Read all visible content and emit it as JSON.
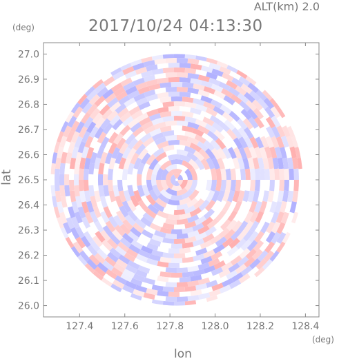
{
  "header": {
    "altitude_label": "ALT(km) 2.0",
    "timestamp": "2017/10/24 04:13:30"
  },
  "axes": {
    "y_unit": "(deg)",
    "x_unit": "(deg)",
    "y_name": "lat",
    "x_name": "lon"
  },
  "chart_data": {
    "type": "heatmap",
    "title": "2017/10/24 04:13:30",
    "subtitle": "ALT(km) 2.0",
    "xlabel": "lon",
    "ylabel": "lat",
    "x_unit": "(deg)",
    "y_unit": "(deg)",
    "xlim": [
      127.24,
      128.46
    ],
    "ylim": [
      25.955,
      27.045
    ],
    "x_ticks": [
      "127.4",
      "127.6",
      "127.8",
      "128.0",
      "128.2",
      "128.4"
    ],
    "y_ticks": [
      "26.0",
      "26.1",
      "26.2",
      "26.3",
      "26.4",
      "26.5",
      "26.6",
      "26.7",
      "26.8",
      "26.9",
      "27.0"
    ],
    "center": {
      "lon": 127.83,
      "lat": 26.5
    },
    "radius_deg_lat": 0.5,
    "grid": false,
    "colors": {
      "positive": "#ff9a9a",
      "negative": "#a0a0ff",
      "zero": "#ffffff",
      "axis": "#888888"
    }
  }
}
